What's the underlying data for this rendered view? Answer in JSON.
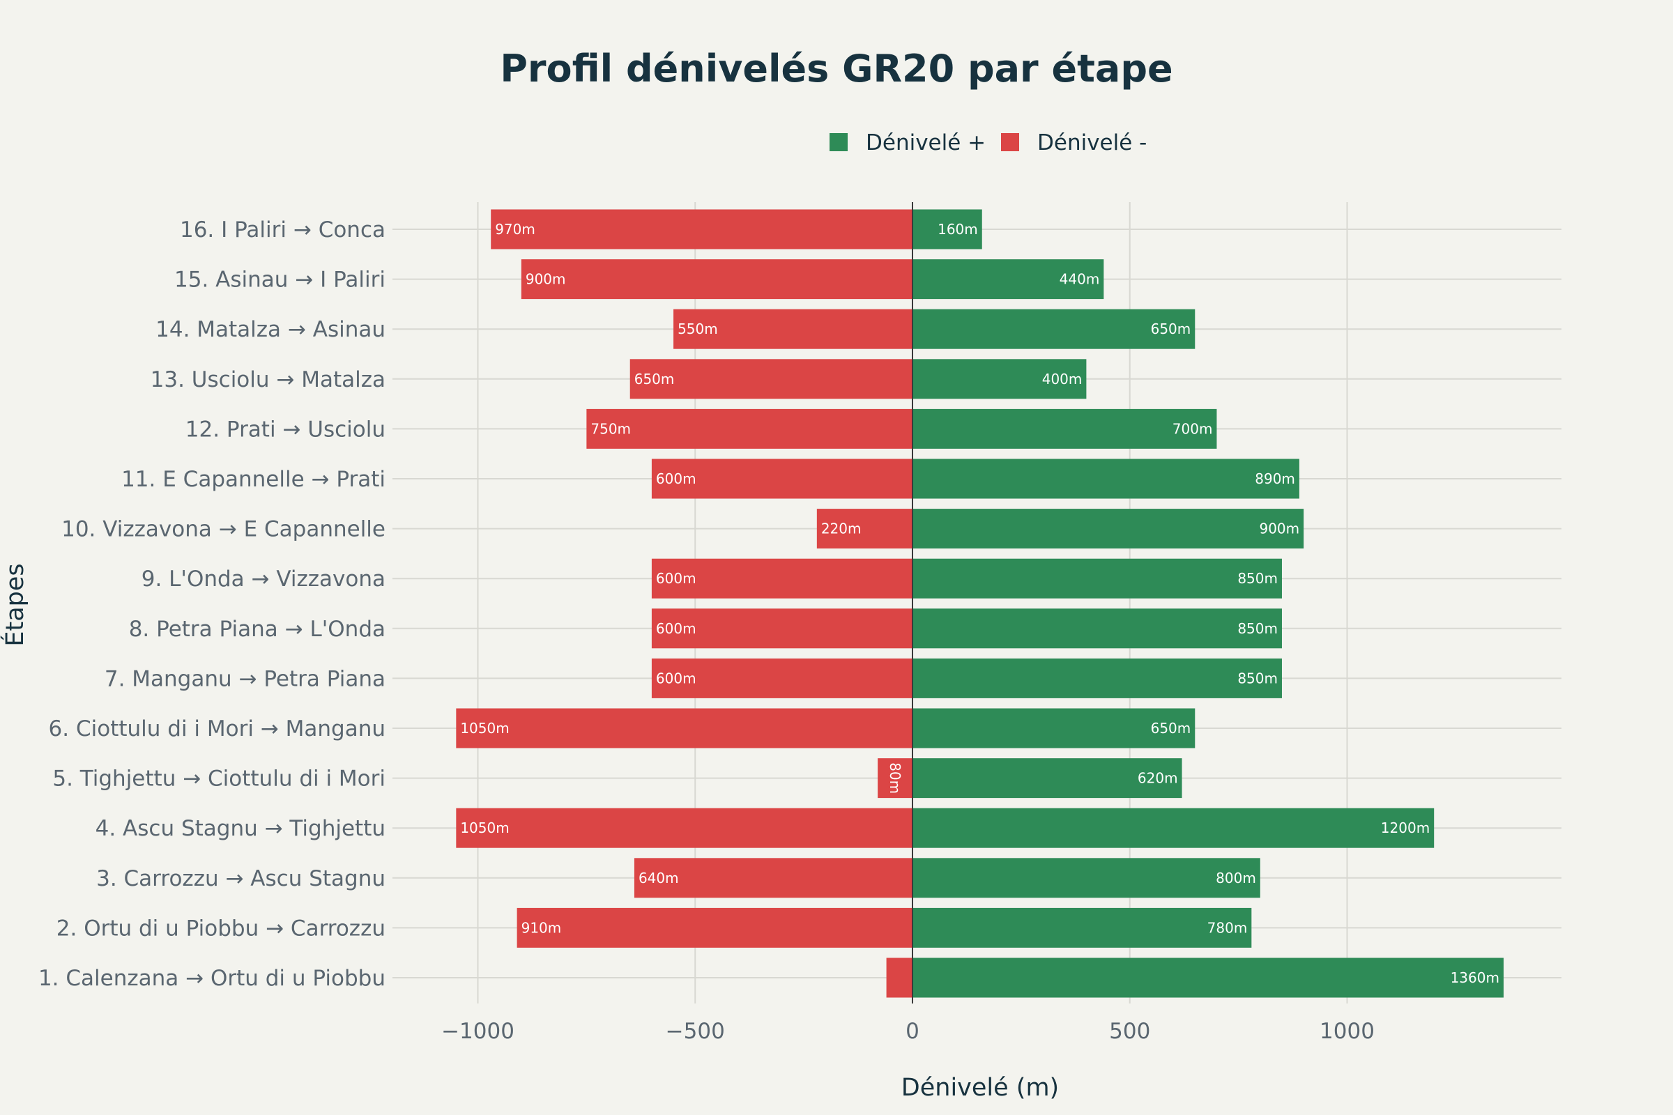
{
  "chart_data": {
    "type": "bar",
    "orientation": "horizontal",
    "title": "Profil dénivelés GR20 par étape",
    "xlabel": "Dénivelé (m)",
    "ylabel": "Étapes",
    "xlim": [
      -1200,
      1500
    ],
    "xticks": [
      -1000,
      -500,
      0,
      500,
      1000
    ],
    "xtick_labels": [
      "−1000",
      "−500",
      "0",
      "500",
      "1000"
    ],
    "grid": true,
    "legend_position": "top-center",
    "categories": [
      "1. Calenzana → Ortu di u Piobbu",
      "2. Ortu di u Piobbu → Carrozzu",
      "3. Carrozzu → Ascu Stagnu",
      "4. Ascu Stagnu → Tighjettu",
      "5. Tighjettu → Ciottulu di i Mori",
      "6. Ciottulu di i Mori → Manganu",
      "7. Manganu → Petra Piana",
      "8. Petra Piana → L'Onda",
      "9. L'Onda → Vizzavona",
      "10. Vizzavona → E Capannelle",
      "11. E Capannelle → Prati",
      "12. Prati → Usciolu",
      "13. Usciolu → Matalza",
      "14. Matalza → Asinau",
      "15. Asinau → I Paliri",
      "16. I Paliri → Conca"
    ],
    "series": [
      {
        "name": "Dénivelé +",
        "color": "#2e8b57",
        "values": [
          1360,
          780,
          800,
          1200,
          620,
          650,
          850,
          850,
          850,
          900,
          890,
          700,
          400,
          650,
          440,
          160
        ],
        "labels": [
          "1360m",
          "780m",
          "800m",
          "1200m",
          "620m",
          "650m",
          "850m",
          "850m",
          "850m",
          "900m",
          "890m",
          "700m",
          "400m",
          "650m",
          "440m",
          "160m"
        ]
      },
      {
        "name": "Dénivelé -",
        "color": "#db4545",
        "values": [
          -60,
          -910,
          -640,
          -1050,
          -80,
          -1050,
          -600,
          -600,
          -600,
          -220,
          -600,
          -750,
          -650,
          -550,
          -900,
          -970
        ],
        "labels": [
          "",
          "910m",
          "640m",
          "1050m",
          "80m",
          "1050m",
          "600m",
          "600m",
          "600m",
          "220m",
          "600m",
          "750m",
          "650m",
          "550m",
          "900m",
          "970m"
        ]
      }
    ]
  }
}
